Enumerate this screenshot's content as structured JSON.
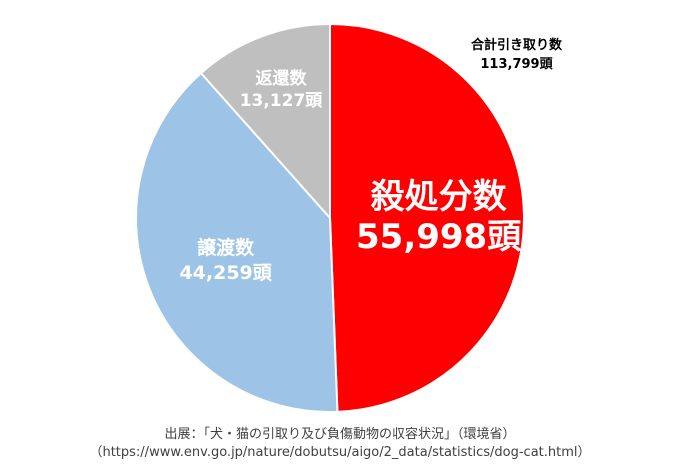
{
  "chart_data": {
    "type": "pie",
    "total": {
      "label": "合計引き取り数",
      "value": "113,799頭"
    },
    "slices": [
      {
        "name": "殺処分数",
        "display": "55,998頭",
        "value": 55998,
        "color": "#ff0000",
        "text_color": "#ffffff"
      },
      {
        "name": "譲渡数",
        "display": "44,259頭",
        "value": 44259,
        "color": "#9dc3e6",
        "text_color": "#ffffff"
      },
      {
        "name": "返還数",
        "display": "13,127頭",
        "value": 13127,
        "color": "#bfbfbf",
        "text_color": "#ffffff"
      }
    ]
  },
  "source": {
    "line1": "出展：「犬・猫の引取り及び負傷動物の収容状況」（環境省）",
    "line2": "（https://www.env.go.jp/nature/dobutsu/aigo/2_data/statistics/dog-cat.html）"
  }
}
